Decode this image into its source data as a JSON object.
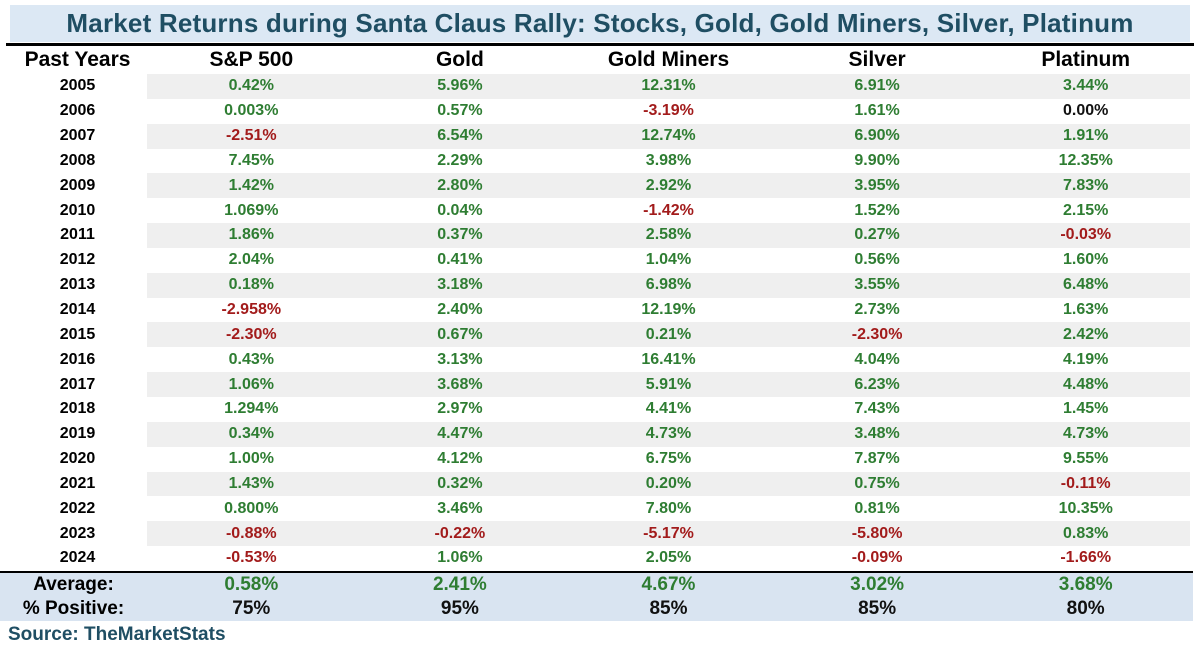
{
  "title": "Market Returns during Santa Claus Rally: Stocks, Gold, Gold Miners, Silver, Platinum",
  "columns": [
    "Past Years",
    "S&P 500",
    "Gold",
    "Gold Miners",
    "Silver",
    "Platinum"
  ],
  "chart_data": {
    "type": "table",
    "title": "Market Returns during Santa Claus Rally: Stocks, Gold, Gold Miners, Silver, Platinum",
    "categories": [
      "S&P 500",
      "Gold",
      "Gold Miners",
      "Silver",
      "Platinum"
    ]
  },
  "rows": [
    {
      "year": "2005",
      "values": [
        "0.42%",
        "5.96%",
        "12.31%",
        "6.91%",
        "3.44%"
      ]
    },
    {
      "year": "2006",
      "values": [
        "0.003%",
        "0.57%",
        "-3.19%",
        "1.61%",
        "0.00%"
      ]
    },
    {
      "year": "2007",
      "values": [
        "-2.51%",
        "6.54%",
        "12.74%",
        "6.90%",
        "1.91%"
      ]
    },
    {
      "year": "2008",
      "values": [
        "7.45%",
        "2.29%",
        "3.98%",
        "9.90%",
        "12.35%"
      ]
    },
    {
      "year": "2009",
      "values": [
        "1.42%",
        "2.80%",
        "2.92%",
        "3.95%",
        "7.83%"
      ]
    },
    {
      "year": "2010",
      "values": [
        "1.069%",
        "0.04%",
        "-1.42%",
        "1.52%",
        "2.15%"
      ]
    },
    {
      "year": "2011",
      "values": [
        "1.86%",
        "0.37%",
        "2.58%",
        "0.27%",
        "-0.03%"
      ]
    },
    {
      "year": "2012",
      "values": [
        "2.04%",
        "0.41%",
        "1.04%",
        "0.56%",
        "1.60%"
      ]
    },
    {
      "year": "2013",
      "values": [
        "0.18%",
        "3.18%",
        "6.98%",
        "3.55%",
        "6.48%"
      ]
    },
    {
      "year": "2014",
      "values": [
        "-2.958%",
        "2.40%",
        "12.19%",
        "2.73%",
        "1.63%"
      ]
    },
    {
      "year": "2015",
      "values": [
        "-2.30%",
        "0.67%",
        "0.21%",
        "-2.30%",
        "2.42%"
      ]
    },
    {
      "year": "2016",
      "values": [
        "0.43%",
        "3.13%",
        "16.41%",
        "4.04%",
        "4.19%"
      ]
    },
    {
      "year": "2017",
      "values": [
        "1.06%",
        "3.68%",
        "5.91%",
        "6.23%",
        "4.48%"
      ]
    },
    {
      "year": "2018",
      "values": [
        "1.294%",
        "2.97%",
        "4.41%",
        "7.43%",
        "1.45%"
      ]
    },
    {
      "year": "2019",
      "values": [
        "0.34%",
        "4.47%",
        "4.73%",
        "3.48%",
        "4.73%"
      ]
    },
    {
      "year": "2020",
      "values": [
        "1.00%",
        "4.12%",
        "6.75%",
        "7.87%",
        "9.55%"
      ]
    },
    {
      "year": "2021",
      "values": [
        "1.43%",
        "0.32%",
        "0.20%",
        "0.75%",
        "-0.11%"
      ]
    },
    {
      "year": "2022",
      "values": [
        "0.800%",
        "3.46%",
        "7.80%",
        "0.81%",
        "10.35%"
      ]
    },
    {
      "year": "2023",
      "values": [
        "-0.88%",
        "-0.22%",
        "-5.17%",
        "-5.80%",
        "0.83%"
      ]
    },
    {
      "year": "2024",
      "values": [
        "-0.53%",
        "1.06%",
        "2.05%",
        "-0.09%",
        "-1.66%"
      ]
    }
  ],
  "summary": {
    "average_label": "Average:",
    "average_values": [
      "0.58%",
      "2.41%",
      "4.67%",
      "3.02%",
      "3.68%"
    ],
    "percent_positive_label": "% Positive:",
    "percent_positive_values": [
      "75%",
      "95%",
      "85%",
      "85%",
      "80%"
    ]
  },
  "source": "Source: TheMarketStats",
  "colors": {
    "positive": "#2e7d32",
    "negative": "#a21b1b",
    "zero": "#111111",
    "title_text": "#1f4e63",
    "title_bg": "#dce8f4",
    "footer_bg": "#d9e4f1",
    "stripe": "#efefef"
  }
}
